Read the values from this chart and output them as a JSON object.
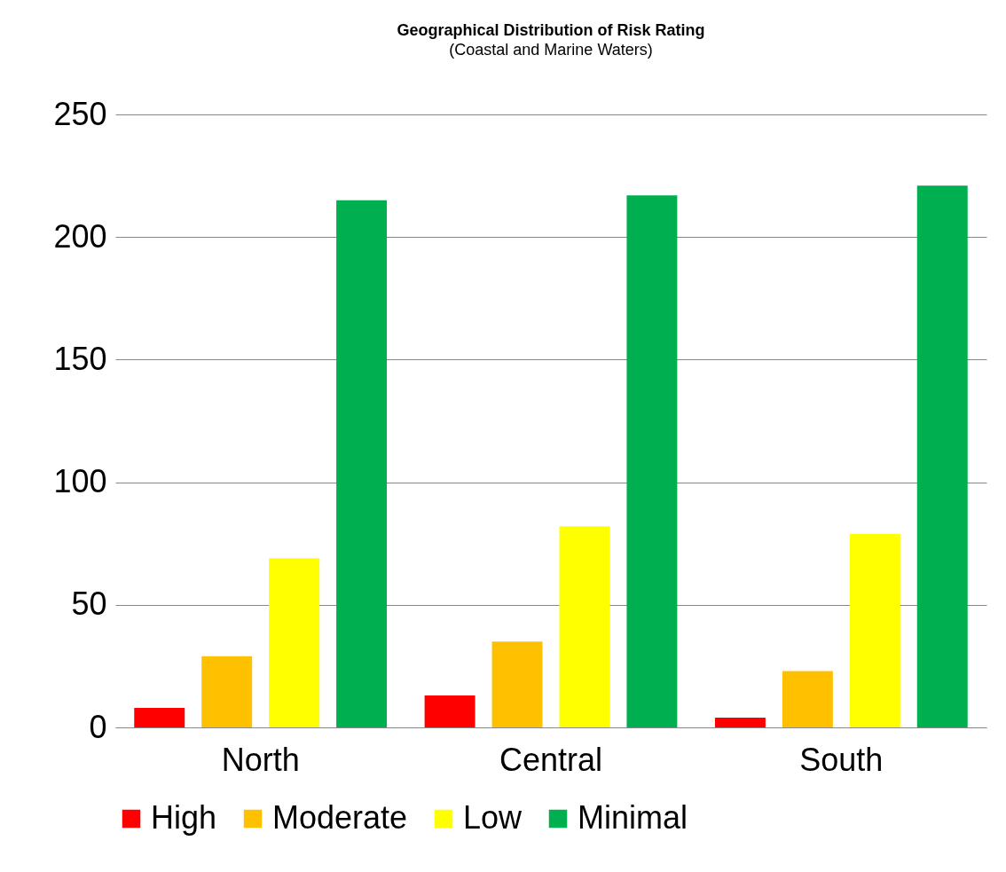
{
  "chart_data": {
    "type": "bar",
    "title": "Geographical Distribution of Risk Rating",
    "subtitle": "(Coastal and Marine Waters)",
    "categories": [
      "North",
      "Central",
      "South"
    ],
    "series": [
      {
        "name": "High",
        "color": "#ff0000",
        "values": [
          8,
          13,
          4
        ]
      },
      {
        "name": "Moderate",
        "color": "#ffc000",
        "values": [
          29,
          35,
          23
        ]
      },
      {
        "name": "Low",
        "color": "#ffff00",
        "values": [
          69,
          82,
          79
        ]
      },
      {
        "name": "Minimal",
        "color": "#00b050",
        "values": [
          215,
          217,
          221
        ]
      }
    ],
    "ylim": [
      0,
      250
    ],
    "yticks": [
      0,
      50,
      100,
      150,
      200,
      250
    ],
    "grid": "y",
    "legend": "bottom"
  }
}
